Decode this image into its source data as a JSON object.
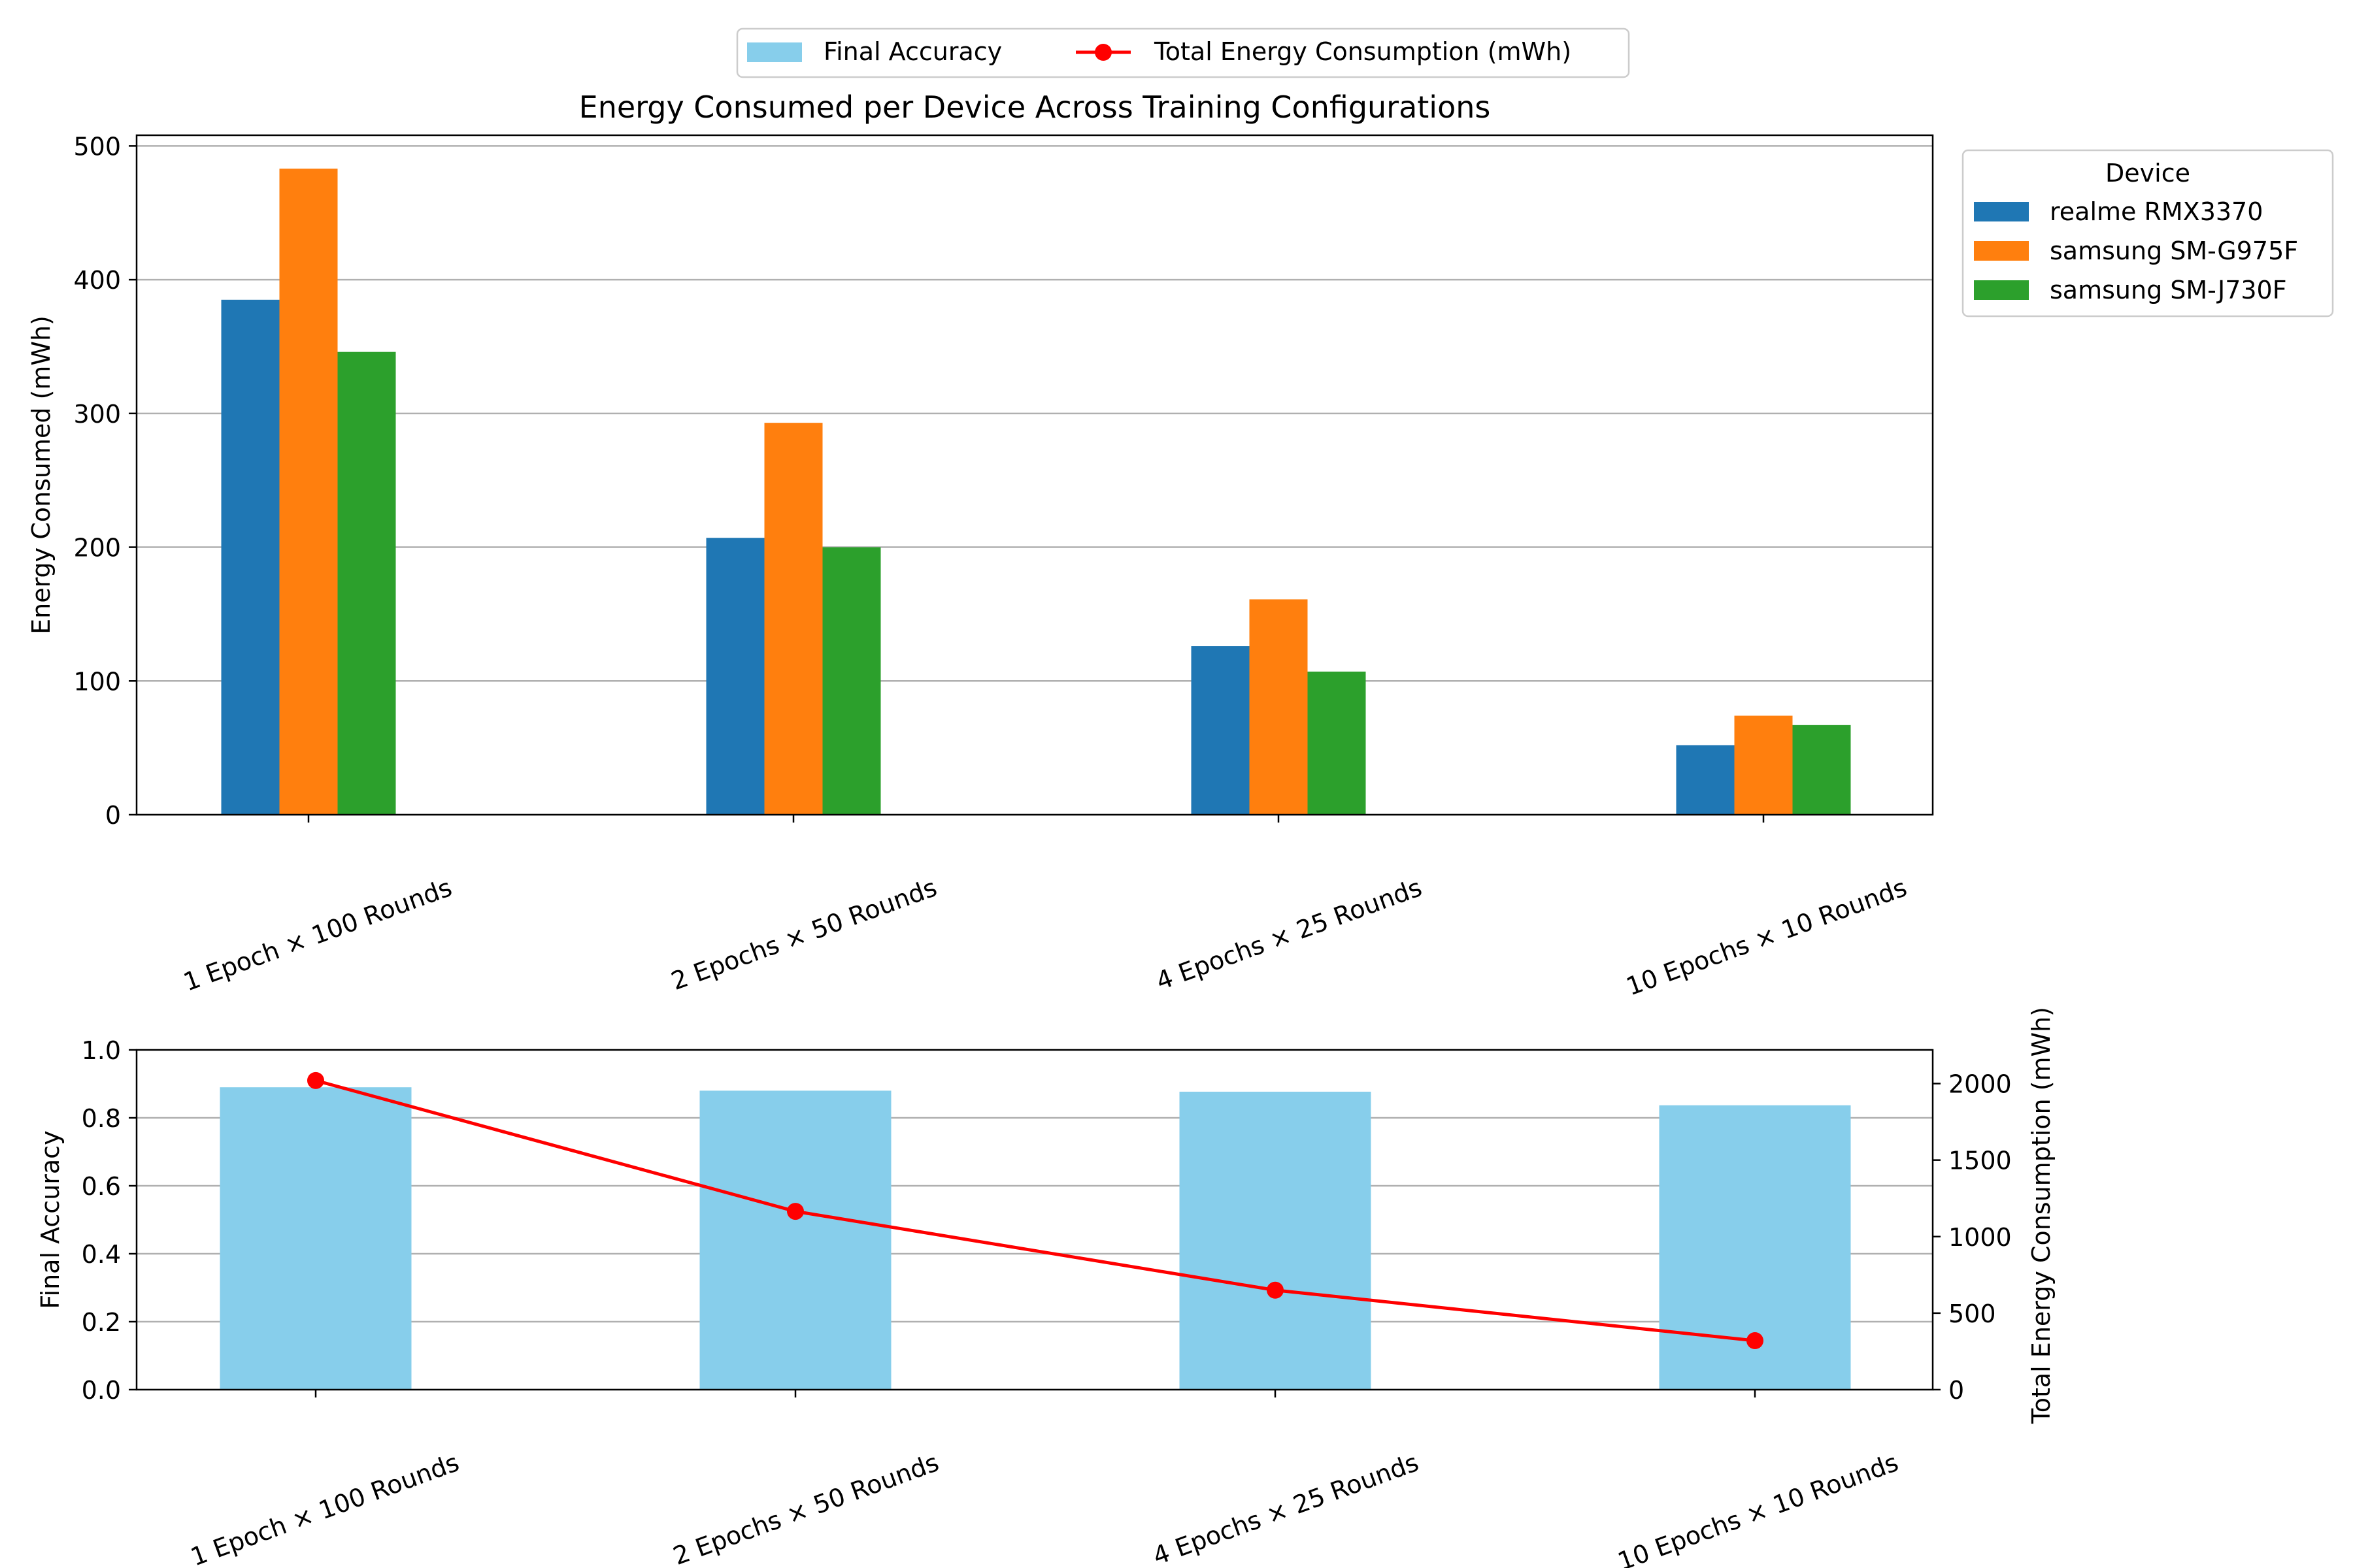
{
  "chart_data": [
    {
      "type": "bar",
      "title": "Energy Consumed per Device Across Training Configurations",
      "xlabel": "",
      "ylabel": "Energy Consumed (mWh)",
      "ylim": [
        0,
        508
      ],
      "yticks": [
        0,
        100,
        200,
        300,
        400,
        500
      ],
      "grid": "horizontal",
      "legend_title": "Device",
      "legend_placement": "outside right",
      "categories": [
        "1 Epoch × 100 Rounds",
        "2 Epochs × 50 Rounds",
        "4 Epochs × 25 Rounds",
        "10 Epochs × 10 Rounds"
      ],
      "series": [
        {
          "name": "realme RMX3370",
          "color": "#1f77b4",
          "values": [
            385,
            207,
            126,
            52
          ]
        },
        {
          "name": "samsung SM-G975F",
          "color": "#ff7f0e",
          "values": [
            483,
            293,
            161,
            74
          ]
        },
        {
          "name": "samsung SM-J730F",
          "color": "#2ca02c",
          "values": [
            346,
            200,
            107,
            67
          ]
        }
      ]
    },
    {
      "type": "bar",
      "xlabel": "",
      "ylabel": "Final Accuracy",
      "y2label": "Total Energy Consumption (mWh)",
      "ylim": [
        0,
        1.0
      ],
      "y2lim": [
        0,
        2220
      ],
      "yticks": [
        "0.0",
        "0.2",
        "0.4",
        "0.6",
        "0.8",
        "1.0"
      ],
      "y2ticks": [
        0,
        500,
        1000,
        1500,
        2000
      ],
      "grid": "horizontal",
      "categories": [
        "1 Epoch × 100 Rounds",
        "2 Epochs × 50 Rounds",
        "4 Epochs × 25 Rounds",
        "10 Epochs × 10 Rounds"
      ],
      "series": [
        {
          "name": "Final Accuracy",
          "kind": "bar",
          "axis": "left",
          "color": "#87ceeb",
          "values": [
            0.89,
            0.88,
            0.877,
            0.837
          ]
        },
        {
          "name": "Total Energy Consumption (mWh)",
          "kind": "line",
          "axis": "right",
          "color": "#ff0000",
          "values": [
            2020,
            1165,
            650,
            320
          ]
        }
      ],
      "legend_placement": "top-center"
    }
  ]
}
